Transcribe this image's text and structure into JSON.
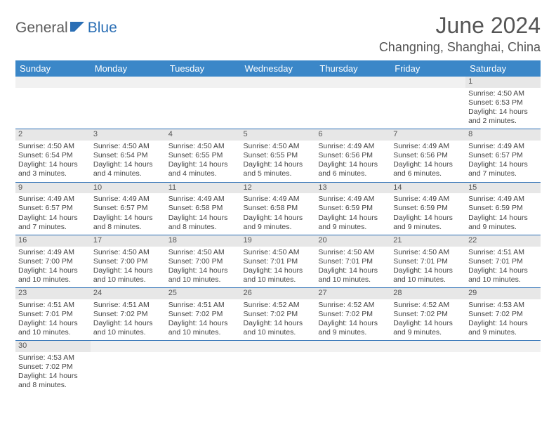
{
  "logo": {
    "part1": "General",
    "part2": "Blue",
    "icon_color": "#2b6fb5"
  },
  "title": "June 2024",
  "location": "Changning, Shanghai, China",
  "header_bg": "#3b87c8",
  "header_fg": "#ffffff",
  "daynum_bg": "#e7e7e7",
  "rule_color": "#2b6fb5",
  "day_names": [
    "Sunday",
    "Monday",
    "Tuesday",
    "Wednesday",
    "Thursday",
    "Friday",
    "Saturday"
  ],
  "weeks": [
    [
      null,
      null,
      null,
      null,
      null,
      null,
      {
        "n": "1",
        "sr": "Sunrise: 4:50 AM",
        "ss": "Sunset: 6:53 PM",
        "dl": "Daylight: 14 hours and 2 minutes."
      }
    ],
    [
      {
        "n": "2",
        "sr": "Sunrise: 4:50 AM",
        "ss": "Sunset: 6:54 PM",
        "dl": "Daylight: 14 hours and 3 minutes."
      },
      {
        "n": "3",
        "sr": "Sunrise: 4:50 AM",
        "ss": "Sunset: 6:54 PM",
        "dl": "Daylight: 14 hours and 4 minutes."
      },
      {
        "n": "4",
        "sr": "Sunrise: 4:50 AM",
        "ss": "Sunset: 6:55 PM",
        "dl": "Daylight: 14 hours and 4 minutes."
      },
      {
        "n": "5",
        "sr": "Sunrise: 4:50 AM",
        "ss": "Sunset: 6:55 PM",
        "dl": "Daylight: 14 hours and 5 minutes."
      },
      {
        "n": "6",
        "sr": "Sunrise: 4:49 AM",
        "ss": "Sunset: 6:56 PM",
        "dl": "Daylight: 14 hours and 6 minutes."
      },
      {
        "n": "7",
        "sr": "Sunrise: 4:49 AM",
        "ss": "Sunset: 6:56 PM",
        "dl": "Daylight: 14 hours and 6 minutes."
      },
      {
        "n": "8",
        "sr": "Sunrise: 4:49 AM",
        "ss": "Sunset: 6:57 PM",
        "dl": "Daylight: 14 hours and 7 minutes."
      }
    ],
    [
      {
        "n": "9",
        "sr": "Sunrise: 4:49 AM",
        "ss": "Sunset: 6:57 PM",
        "dl": "Daylight: 14 hours and 7 minutes."
      },
      {
        "n": "10",
        "sr": "Sunrise: 4:49 AM",
        "ss": "Sunset: 6:57 PM",
        "dl": "Daylight: 14 hours and 8 minutes."
      },
      {
        "n": "11",
        "sr": "Sunrise: 4:49 AM",
        "ss": "Sunset: 6:58 PM",
        "dl": "Daylight: 14 hours and 8 minutes."
      },
      {
        "n": "12",
        "sr": "Sunrise: 4:49 AM",
        "ss": "Sunset: 6:58 PM",
        "dl": "Daylight: 14 hours and 9 minutes."
      },
      {
        "n": "13",
        "sr": "Sunrise: 4:49 AM",
        "ss": "Sunset: 6:59 PM",
        "dl": "Daylight: 14 hours and 9 minutes."
      },
      {
        "n": "14",
        "sr": "Sunrise: 4:49 AM",
        "ss": "Sunset: 6:59 PM",
        "dl": "Daylight: 14 hours and 9 minutes."
      },
      {
        "n": "15",
        "sr": "Sunrise: 4:49 AM",
        "ss": "Sunset: 6:59 PM",
        "dl": "Daylight: 14 hours and 9 minutes."
      }
    ],
    [
      {
        "n": "16",
        "sr": "Sunrise: 4:49 AM",
        "ss": "Sunset: 7:00 PM",
        "dl": "Daylight: 14 hours and 10 minutes."
      },
      {
        "n": "17",
        "sr": "Sunrise: 4:50 AM",
        "ss": "Sunset: 7:00 PM",
        "dl": "Daylight: 14 hours and 10 minutes."
      },
      {
        "n": "18",
        "sr": "Sunrise: 4:50 AM",
        "ss": "Sunset: 7:00 PM",
        "dl": "Daylight: 14 hours and 10 minutes."
      },
      {
        "n": "19",
        "sr": "Sunrise: 4:50 AM",
        "ss": "Sunset: 7:01 PM",
        "dl": "Daylight: 14 hours and 10 minutes."
      },
      {
        "n": "20",
        "sr": "Sunrise: 4:50 AM",
        "ss": "Sunset: 7:01 PM",
        "dl": "Daylight: 14 hours and 10 minutes."
      },
      {
        "n": "21",
        "sr": "Sunrise: 4:50 AM",
        "ss": "Sunset: 7:01 PM",
        "dl": "Daylight: 14 hours and 10 minutes."
      },
      {
        "n": "22",
        "sr": "Sunrise: 4:51 AM",
        "ss": "Sunset: 7:01 PM",
        "dl": "Daylight: 14 hours and 10 minutes."
      }
    ],
    [
      {
        "n": "23",
        "sr": "Sunrise: 4:51 AM",
        "ss": "Sunset: 7:01 PM",
        "dl": "Daylight: 14 hours and 10 minutes."
      },
      {
        "n": "24",
        "sr": "Sunrise: 4:51 AM",
        "ss": "Sunset: 7:02 PM",
        "dl": "Daylight: 14 hours and 10 minutes."
      },
      {
        "n": "25",
        "sr": "Sunrise: 4:51 AM",
        "ss": "Sunset: 7:02 PM",
        "dl": "Daylight: 14 hours and 10 minutes."
      },
      {
        "n": "26",
        "sr": "Sunrise: 4:52 AM",
        "ss": "Sunset: 7:02 PM",
        "dl": "Daylight: 14 hours and 10 minutes."
      },
      {
        "n": "27",
        "sr": "Sunrise: 4:52 AM",
        "ss": "Sunset: 7:02 PM",
        "dl": "Daylight: 14 hours and 9 minutes."
      },
      {
        "n": "28",
        "sr": "Sunrise: 4:52 AM",
        "ss": "Sunset: 7:02 PM",
        "dl": "Daylight: 14 hours and 9 minutes."
      },
      {
        "n": "29",
        "sr": "Sunrise: 4:53 AM",
        "ss": "Sunset: 7:02 PM",
        "dl": "Daylight: 14 hours and 9 minutes."
      }
    ],
    [
      {
        "n": "30",
        "sr": "Sunrise: 4:53 AM",
        "ss": "Sunset: 7:02 PM",
        "dl": "Daylight: 14 hours and 8 minutes."
      },
      null,
      null,
      null,
      null,
      null,
      null
    ]
  ]
}
